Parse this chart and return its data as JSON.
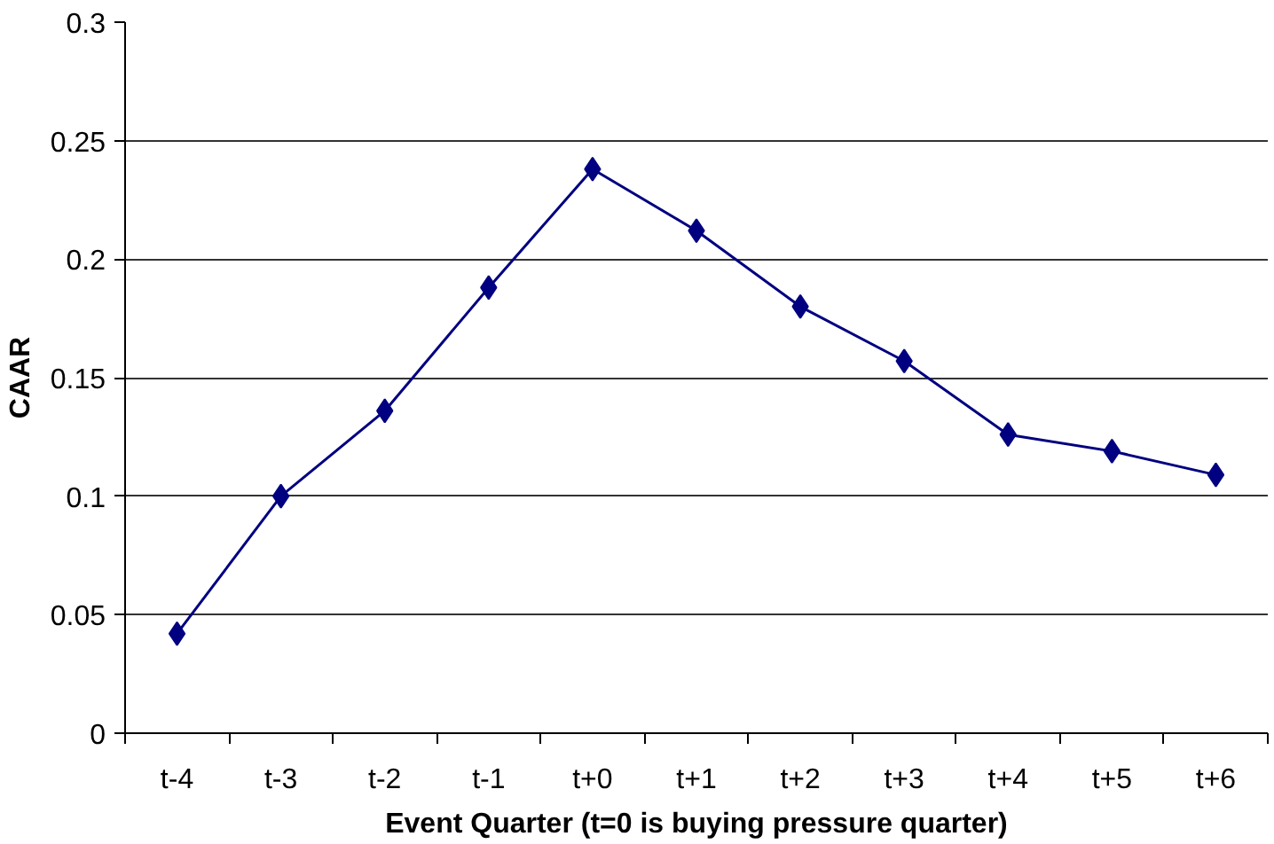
{
  "chart_data": {
    "type": "line",
    "xlabel": "Event Quarter (t=0 is buying pressure quarter)",
    "ylabel": "CAAR",
    "categories": [
      "t-4",
      "t-3",
      "t-2",
      "t-1",
      "t+0",
      "t+1",
      "t+2",
      "t+3",
      "t+4",
      "t+5",
      "t+6"
    ],
    "series": [
      {
        "color": "#000080",
        "values": [
          0.042,
          0.1,
          0.136,
          0.188,
          0.238,
          0.212,
          0.18,
          0.157,
          0.126,
          0.119,
          0.109
        ]
      }
    ],
    "ylim": [
      0,
      0.3
    ],
    "yticks": [
      0,
      0.05,
      0.1,
      0.15,
      0.2,
      0.25,
      0.3
    ],
    "grid": "y",
    "marker": "diamond",
    "line_style": "solid"
  }
}
